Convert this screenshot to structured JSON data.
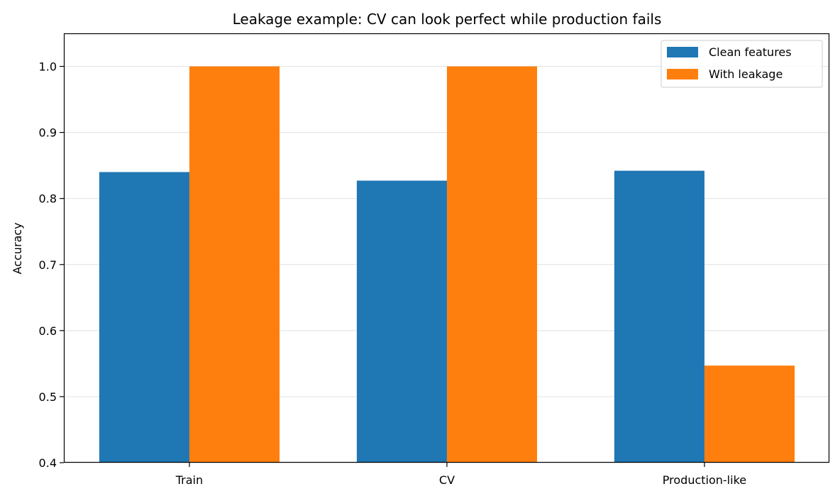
{
  "chart_data": {
    "type": "bar",
    "title": "Leakage example: CV can look perfect while production fails",
    "xlabel": "",
    "ylabel": "Accuracy",
    "categories": [
      "Train",
      "CV",
      "Production-like"
    ],
    "series": [
      {
        "name": "Clean features",
        "values": [
          0.84,
          0.827,
          0.842
        ],
        "color": "#1f77b4"
      },
      {
        "name": "With leakage",
        "values": [
          1.0,
          1.0,
          0.547
        ],
        "color": "#ff7f0e"
      }
    ],
    "ylim": [
      0.4,
      1.05
    ],
    "yticks": [
      "0.4",
      "0.5",
      "0.6",
      "0.7",
      "0.8",
      "0.9",
      "1.0"
    ],
    "grid": "y",
    "legend": "top-right"
  }
}
